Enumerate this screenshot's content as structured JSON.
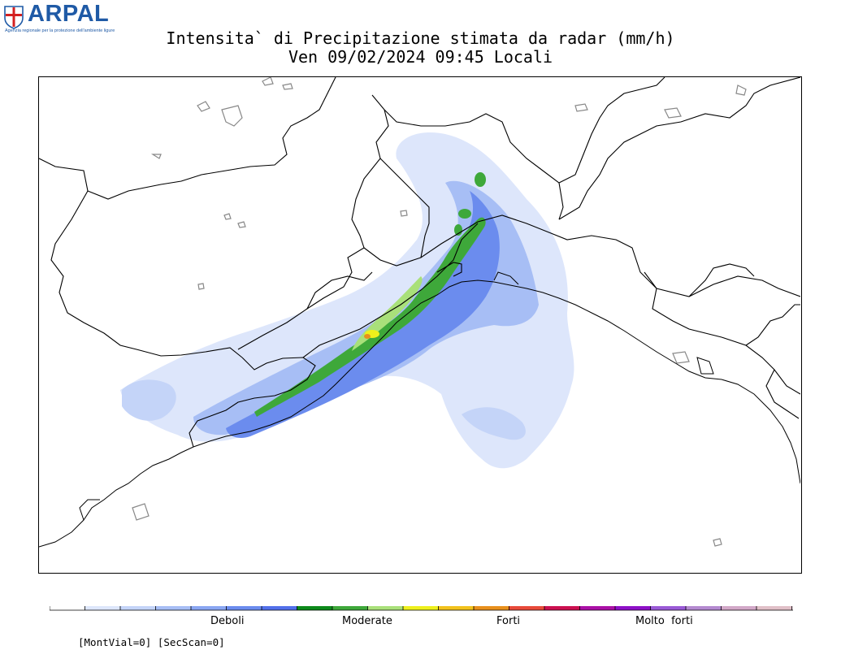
{
  "logo": {
    "name": "ARPAL",
    "tagline": "Agenzia regionale per la protezione dell'ambiente ligure"
  },
  "title": {
    "line1": "Intensita` di Precipitazione stimata da radar (mm/h)",
    "line2": "Ven 09/02/2024 09:45 Locali"
  },
  "map": {
    "status_text": "[MontVial=0] [SecScan=0]",
    "region": "Liguria"
  },
  "legend": {
    "colors": [
      "#ffffff",
      "#dde6fb",
      "#c4d4f8",
      "#a7bef5",
      "#8aa6f2",
      "#6b8cee",
      "#5270ea",
      "#0d8a1a",
      "#3ea83a",
      "#a9e07a",
      "#eef01c",
      "#f2c21c",
      "#e8901c",
      "#e84a3a",
      "#cc1050",
      "#aa10a6",
      "#8e10c8",
      "#9a5ad6",
      "#b48ad0",
      "#d2a8c8",
      "#e0c0c8",
      "#efe0e8"
    ],
    "labels": [
      "Deboli",
      "Moderate",
      "Forti",
      "Molto  forti"
    ]
  },
  "colors": {
    "logo_blue": "#1f5aa6",
    "coast": "#000000",
    "borders": "#000000"
  }
}
